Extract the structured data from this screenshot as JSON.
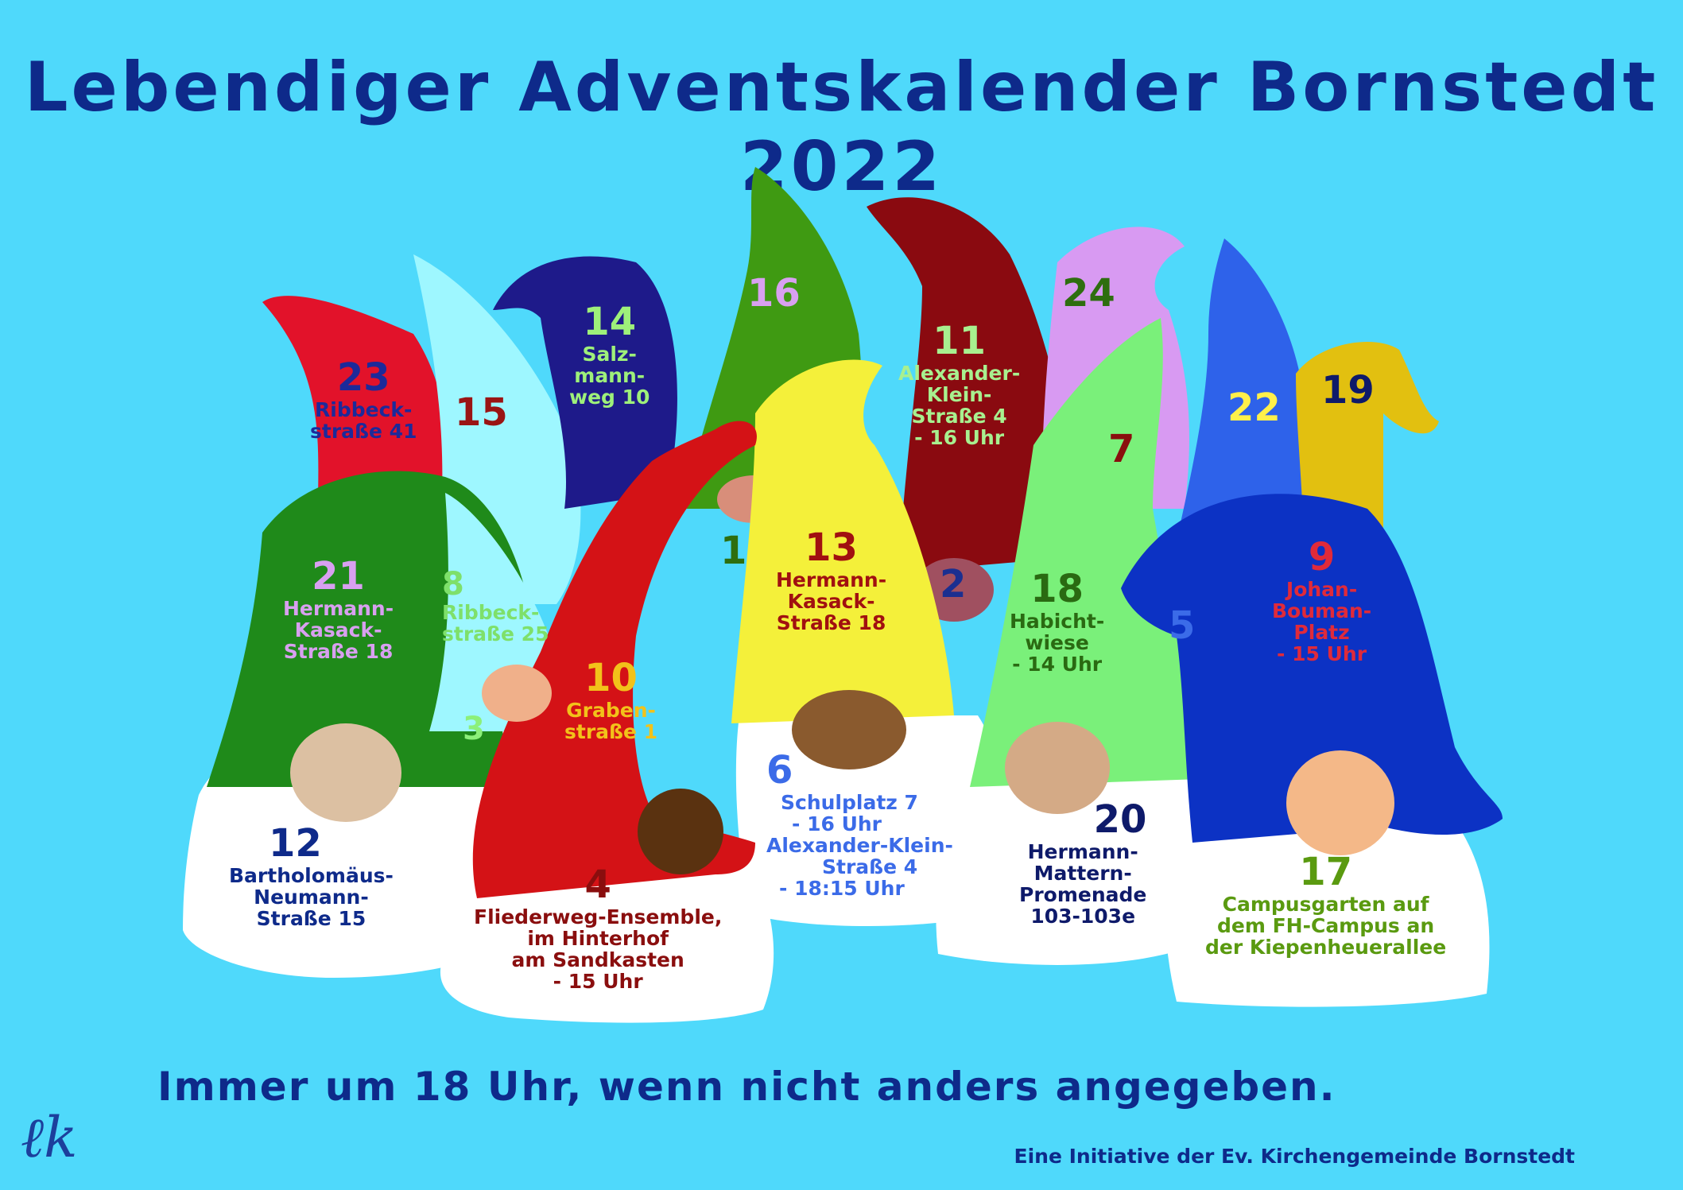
{
  "title": "Lebendiger Adventskalender Bornstedt 2022",
  "footer": "Immer um 18 Uhr, wenn nicht anders angegeben.",
  "credit": "Eine Initiative der Ev. Kirchengemeinde Bornstedt",
  "signature": "ℓk",
  "colors": {
    "background": "#4fd9fb",
    "title": "#0e2a8a",
    "beard": "#ffffff"
  },
  "doors": [
    {
      "n": "1",
      "color": "#2e6e0f",
      "lines": []
    },
    {
      "n": "2",
      "color": "#1b2f90",
      "lines": []
    },
    {
      "n": "3",
      "color": "#8cf07a",
      "lines": []
    },
    {
      "n": "4",
      "color": "#8a0e0e",
      "lines": [
        "Fliederweg-Ensemble,",
        "im Hinterhof",
        "am Sandkasten",
        "- 15 Uhr"
      ]
    },
    {
      "n": "5",
      "color": "#3b6be8",
      "lines": []
    },
    {
      "n": "6",
      "color": "#3b6be8",
      "lines": [
        "Schulplatz 7",
        "- 16 Uhr",
        "Alexander-Klein-",
        "Straße 4",
        "- 18:15 Uhr"
      ]
    },
    {
      "n": "7",
      "color": "#8a0e0e",
      "lines": []
    },
    {
      "n": "8",
      "color": "#7ee06a",
      "lines": [
        "Ribbeck-",
        "straße 25"
      ]
    },
    {
      "n": "9",
      "color": "#e02a3a",
      "lines": [
        "Johan-",
        "Bouman-",
        "Platz",
        "- 15 Uhr"
      ]
    },
    {
      "n": "10",
      "color": "#f2c21a",
      "lines": [
        "Graben-",
        "straße 1"
      ]
    },
    {
      "n": "11",
      "color": "#a8f08f",
      "lines": [
        "Alexander-",
        "Klein-",
        "Straße 4",
        "- 16 Uhr"
      ]
    },
    {
      "n": "12",
      "color": "#0e2a8a",
      "lines": [
        "Bartholomäus-",
        "Neumann-",
        "Straße 15"
      ]
    },
    {
      "n": "13",
      "color": "#a11010",
      "lines": [
        "Hermann-",
        "Kasack-",
        "Straße 18"
      ]
    },
    {
      "n": "14",
      "color": "#9ef07a",
      "lines": [
        "Salz-",
        "mann-",
        "weg 10"
      ]
    },
    {
      "n": "15",
      "color": "#9a1414",
      "lines": []
    },
    {
      "n": "16",
      "color": "#d8a0f0",
      "lines": []
    },
    {
      "n": "17",
      "color": "#5a9a10",
      "lines": [
        "Campusgarten auf",
        "dem FH-Campus an",
        "der Kiepenheuerallee"
      ]
    },
    {
      "n": "18",
      "color": "#2a6a12",
      "lines": [
        "Habicht-",
        "wiese",
        "- 14 Uhr"
      ]
    },
    {
      "n": "19",
      "color": "#0e1a6a",
      "lines": []
    },
    {
      "n": "20",
      "color": "#0e1a6a",
      "lines": [
        "Hermann-",
        "Mattern-",
        "Promenade",
        "103-103e"
      ]
    },
    {
      "n": "21",
      "color": "#d8a0f0",
      "lines": [
        "Hermann-",
        "Kasack-",
        "Straße 18"
      ]
    },
    {
      "n": "22",
      "color": "#fff04a",
      "lines": []
    },
    {
      "n": "23",
      "color": "#1c2a9a",
      "lines": [
        "Ribbeck-",
        "straße 41"
      ]
    },
    {
      "n": "24",
      "color": "#2e6e0f",
      "lines": []
    }
  ]
}
